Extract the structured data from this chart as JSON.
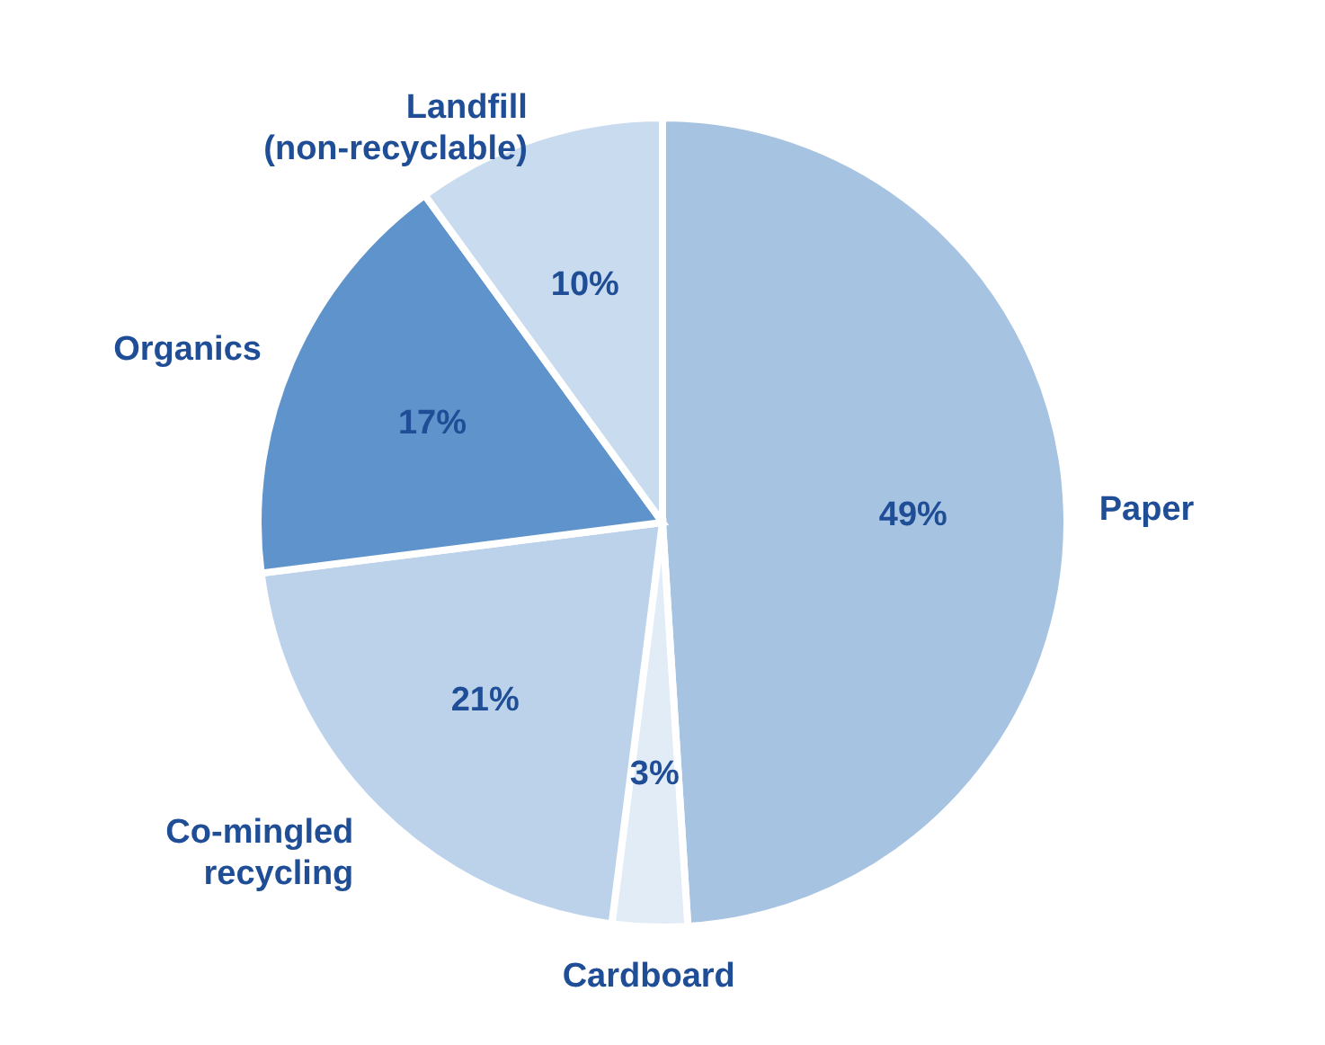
{
  "chart_data": {
    "type": "pie",
    "categories": [
      "Paper",
      "Cardboard",
      "Co-mingled recycling",
      "Organics",
      "Landfill (non-recyclable)"
    ],
    "values": [
      49,
      3,
      21,
      17,
      10
    ],
    "value_labels": [
      "49%",
      "3%",
      "21%",
      "17%",
      "10%"
    ],
    "colors": [
      "#a7c3e2",
      "#e2ecf7",
      "#bcd2ea",
      "#5f93cc",
      "#c9dbef"
    ]
  }
}
